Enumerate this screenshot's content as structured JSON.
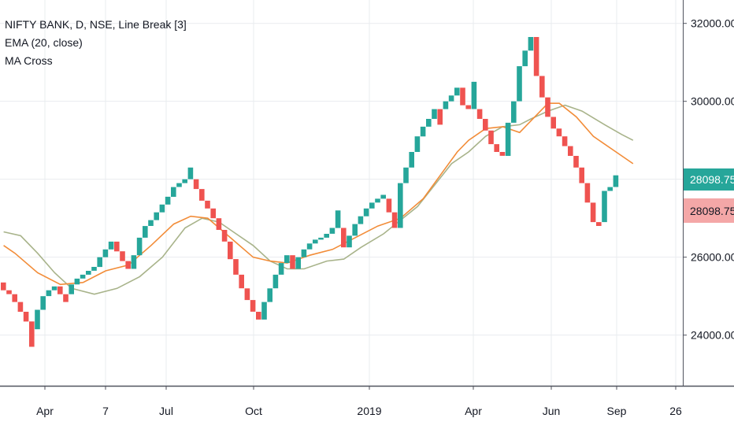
{
  "legend": {
    "symbol": "NIFTY BANK, D, NSE, Line Break [3]",
    "ema": "EMA (20, close)",
    "macross": "MA Cross"
  },
  "price_axis": {
    "last_price_label": "28098.75",
    "last_price_color": "#26a69a",
    "prev_price_label": "28098.75",
    "prev_price_color": "#f4a7a7"
  },
  "colors": {
    "up": "#26a69a",
    "down": "#ef5350",
    "ema_line": "#f28c38",
    "ma_cross_line": "#a8b38a",
    "grid": "#e9ecef",
    "axis_text": "#131722"
  },
  "chart_data": {
    "type": "line_break",
    "title": "NIFTY BANK, D, NSE, Line Break [3]",
    "y_ticks": [
      24000,
      26000,
      28000,
      30000,
      32000
    ],
    "y_tick_labels": [
      "24000.00",
      "26000.00",
      "28000.00",
      "30000.00",
      "32000.00"
    ],
    "ylim": [
      22700,
      32600
    ],
    "x_ticks": [
      "Apr",
      "7",
      "Jul",
      "Oct",
      "2019",
      "Apr",
      "Jun",
      "Sep",
      "26"
    ],
    "grid": true,
    "bricks": [
      {
        "dir": "down",
        "open": 25350,
        "close": 25150
      },
      {
        "dir": "down",
        "open": 25150,
        "close": 25050
      },
      {
        "dir": "down",
        "open": 25050,
        "close": 24850
      },
      {
        "dir": "down",
        "open": 24850,
        "close": 24600
      },
      {
        "dir": "down",
        "open": 24600,
        "close": 24350
      },
      {
        "dir": "down",
        "open": 24350,
        "close": 23700
      },
      {
        "dir": "up",
        "open": 24150,
        "close": 24650
      },
      {
        "dir": "up",
        "open": 24650,
        "close": 25000
      },
      {
        "dir": "up",
        "open": 25000,
        "close": 25150
      },
      {
        "dir": "up",
        "open": 25150,
        "close": 25250
      },
      {
        "dir": "down",
        "open": 25250,
        "close": 25050
      },
      {
        "dir": "down",
        "open": 25050,
        "close": 24850
      },
      {
        "dir": "up",
        "open": 25050,
        "close": 25300
      },
      {
        "dir": "up",
        "open": 25300,
        "close": 25450
      },
      {
        "dir": "up",
        "open": 25450,
        "close": 25550
      },
      {
        "dir": "up",
        "open": 25550,
        "close": 25650
      },
      {
        "dir": "up",
        "open": 25650,
        "close": 25750
      },
      {
        "dir": "up",
        "open": 25750,
        "close": 26000
      },
      {
        "dir": "up",
        "open": 26000,
        "close": 26200
      },
      {
        "dir": "up",
        "open": 26200,
        "close": 26400
      },
      {
        "dir": "down",
        "open": 26400,
        "close": 26150
      },
      {
        "dir": "down",
        "open": 26150,
        "close": 25900
      },
      {
        "dir": "down",
        "open": 25900,
        "close": 25700
      },
      {
        "dir": "up",
        "open": 25700,
        "close": 26050
      },
      {
        "dir": "up",
        "open": 26050,
        "close": 26500
      },
      {
        "dir": "up",
        "open": 26500,
        "close": 26800
      },
      {
        "dir": "up",
        "open": 26800,
        "close": 26950
      },
      {
        "dir": "up",
        "open": 26950,
        "close": 27150
      },
      {
        "dir": "up",
        "open": 27150,
        "close": 27350
      },
      {
        "dir": "up",
        "open": 27350,
        "close": 27550
      },
      {
        "dir": "up",
        "open": 27550,
        "close": 27800
      },
      {
        "dir": "up",
        "open": 27800,
        "close": 27900
      },
      {
        "dir": "up",
        "open": 27900,
        "close": 28000
      },
      {
        "dir": "up",
        "open": 28000,
        "close": 28300
      },
      {
        "dir": "down",
        "open": 28000,
        "close": 27750
      },
      {
        "dir": "down",
        "open": 27750,
        "close": 27450
      },
      {
        "dir": "down",
        "open": 27450,
        "close": 27250
      },
      {
        "dir": "down",
        "open": 27250,
        "close": 27000
      },
      {
        "dir": "down",
        "open": 27000,
        "close": 26700
      },
      {
        "dir": "down",
        "open": 26700,
        "close": 26400
      },
      {
        "dir": "down",
        "open": 26400,
        "close": 25950
      },
      {
        "dir": "down",
        "open": 25950,
        "close": 25550
      },
      {
        "dir": "down",
        "open": 25550,
        "close": 25200
      },
      {
        "dir": "down",
        "open": 25200,
        "close": 24900
      },
      {
        "dir": "down",
        "open": 24900,
        "close": 24600
      },
      {
        "dir": "down",
        "open": 24600,
        "close": 24400
      },
      {
        "dir": "up",
        "open": 24400,
        "close": 24850
      },
      {
        "dir": "up",
        "open": 24850,
        "close": 25200
      },
      {
        "dir": "up",
        "open": 25200,
        "close": 25550
      },
      {
        "dir": "up",
        "open": 25550,
        "close": 25850
      },
      {
        "dir": "up",
        "open": 25850,
        "close": 26050
      },
      {
        "dir": "down",
        "open": 26050,
        "close": 25700
      },
      {
        "dir": "up",
        "open": 25700,
        "close": 26000
      },
      {
        "dir": "up",
        "open": 26000,
        "close": 26200
      },
      {
        "dir": "up",
        "open": 26200,
        "close": 26350
      },
      {
        "dir": "up",
        "open": 26350,
        "close": 26450
      },
      {
        "dir": "up",
        "open": 26450,
        "close": 26500
      },
      {
        "dir": "up",
        "open": 26500,
        "close": 26600
      },
      {
        "dir": "up",
        "open": 26600,
        "close": 26750
      },
      {
        "dir": "up",
        "open": 26750,
        "close": 27200
      },
      {
        "dir": "down",
        "open": 26750,
        "close": 26250
      },
      {
        "dir": "up",
        "open": 26250,
        "close": 26550
      },
      {
        "dir": "up",
        "open": 26550,
        "close": 26850
      },
      {
        "dir": "up",
        "open": 26850,
        "close": 27050
      },
      {
        "dir": "up",
        "open": 27050,
        "close": 27250
      },
      {
        "dir": "up",
        "open": 27250,
        "close": 27400
      },
      {
        "dir": "up",
        "open": 27400,
        "close": 27500
      },
      {
        "dir": "up",
        "open": 27500,
        "close": 27600
      },
      {
        "dir": "down",
        "open": 27500,
        "close": 27150
      },
      {
        "dir": "down",
        "open": 27150,
        "close": 26750
      },
      {
        "dir": "up",
        "open": 26750,
        "close": 27900
      },
      {
        "dir": "up",
        "open": 27900,
        "close": 28300
      },
      {
        "dir": "up",
        "open": 28300,
        "close": 28700
      },
      {
        "dir": "up",
        "open": 28700,
        "close": 29100
      },
      {
        "dir": "up",
        "open": 29100,
        "close": 29350
      },
      {
        "dir": "up",
        "open": 29350,
        "close": 29550
      },
      {
        "dir": "up",
        "open": 29550,
        "close": 29800
      },
      {
        "dir": "down",
        "open": 29800,
        "close": 29400
      },
      {
        "dir": "up",
        "open": 29800,
        "close": 30000
      },
      {
        "dir": "up",
        "open": 30000,
        "close": 30150
      },
      {
        "dir": "up",
        "open": 30150,
        "close": 30350
      },
      {
        "dir": "down",
        "open": 30350,
        "close": 29900
      },
      {
        "dir": "down",
        "open": 29900,
        "close": 29800
      },
      {
        "dir": "up",
        "open": 29800,
        "close": 30500
      },
      {
        "dir": "down",
        "open": 29800,
        "close": 29550
      },
      {
        "dir": "down",
        "open": 29550,
        "close": 29250
      },
      {
        "dir": "down",
        "open": 29250,
        "close": 28900
      },
      {
        "dir": "down",
        "open": 28900,
        "close": 28700
      },
      {
        "dir": "down",
        "open": 28700,
        "close": 28600
      },
      {
        "dir": "up",
        "open": 28600,
        "close": 29450
      },
      {
        "dir": "up",
        "open": 29450,
        "close": 30000
      },
      {
        "dir": "up",
        "open": 30000,
        "close": 30900
      },
      {
        "dir": "up",
        "open": 30900,
        "close": 31300
      },
      {
        "dir": "up",
        "open": 31300,
        "close": 31650
      },
      {
        "dir": "down",
        "open": 31650,
        "close": 30650
      },
      {
        "dir": "down",
        "open": 30650,
        "close": 30100
      },
      {
        "dir": "down",
        "open": 30100,
        "close": 29600
      },
      {
        "dir": "down",
        "open": 29600,
        "close": 29300
      },
      {
        "dir": "down",
        "open": 29300,
        "close": 29100
      },
      {
        "dir": "down",
        "open": 29100,
        "close": 28850
      },
      {
        "dir": "down",
        "open": 28850,
        "close": 28600
      },
      {
        "dir": "down",
        "open": 28600,
        "close": 28300
      },
      {
        "dir": "down",
        "open": 28300,
        "close": 27900
      },
      {
        "dir": "down",
        "open": 27900,
        "close": 27400
      },
      {
        "dir": "down",
        "open": 27400,
        "close": 26900
      },
      {
        "dir": "down",
        "open": 26900,
        "close": 26800
      },
      {
        "dir": "up",
        "open": 26900,
        "close": 27700
      },
      {
        "dir": "up",
        "open": 27700,
        "close": 27800
      },
      {
        "dir": "up",
        "open": 27800,
        "close": 28100
      }
    ],
    "series": [
      {
        "name": "EMA (20, close)",
        "values": [
          [
            0,
            26300
          ],
          [
            2,
            26100
          ],
          [
            6,
            25600
          ],
          [
            10,
            25300
          ],
          [
            14,
            25350
          ],
          [
            18,
            25650
          ],
          [
            22,
            25800
          ],
          [
            26,
            26300
          ],
          [
            30,
            26850
          ],
          [
            33,
            27050
          ],
          [
            36,
            27000
          ],
          [
            40,
            26500
          ],
          [
            44,
            26000
          ],
          [
            47,
            25900
          ],
          [
            50,
            25850
          ],
          [
            54,
            26050
          ],
          [
            58,
            26200
          ],
          [
            62,
            26500
          ],
          [
            66,
            26800
          ],
          [
            70,
            27000
          ],
          [
            74,
            27500
          ],
          [
            77,
            28100
          ],
          [
            80,
            28700
          ],
          [
            82,
            29000
          ],
          [
            85,
            29300
          ],
          [
            88,
            29350
          ],
          [
            91,
            29200
          ],
          [
            93,
            29500
          ],
          [
            96,
            29950
          ],
          [
            98,
            29950
          ],
          [
            101,
            29600
          ],
          [
            104,
            29100
          ],
          [
            108,
            28700
          ],
          [
            111,
            28400
          ]
        ]
      },
      {
        "name": "MA Cross",
        "values": [
          [
            0,
            26650
          ],
          [
            3,
            26550
          ],
          [
            6,
            26100
          ],
          [
            9,
            25600
          ],
          [
            12,
            25200
          ],
          [
            16,
            25050
          ],
          [
            20,
            25200
          ],
          [
            24,
            25500
          ],
          [
            28,
            26000
          ],
          [
            32,
            26750
          ],
          [
            35,
            27000
          ],
          [
            38,
            26900
          ],
          [
            41,
            26600
          ],
          [
            44,
            26300
          ],
          [
            47,
            25900
          ],
          [
            50,
            25700
          ],
          [
            53,
            25700
          ],
          [
            57,
            25900
          ],
          [
            60,
            25950
          ],
          [
            63,
            26250
          ],
          [
            67,
            26600
          ],
          [
            70,
            26950
          ],
          [
            73,
            27300
          ],
          [
            76,
            27850
          ],
          [
            79,
            28400
          ],
          [
            82,
            28700
          ],
          [
            85,
            29100
          ],
          [
            88,
            29350
          ],
          [
            91,
            29400
          ],
          [
            93,
            29550
          ],
          [
            96,
            29750
          ],
          [
            99,
            29900
          ],
          [
            102,
            29750
          ],
          [
            106,
            29400
          ],
          [
            109,
            29150
          ],
          [
            111,
            29000
          ]
        ]
      }
    ]
  }
}
